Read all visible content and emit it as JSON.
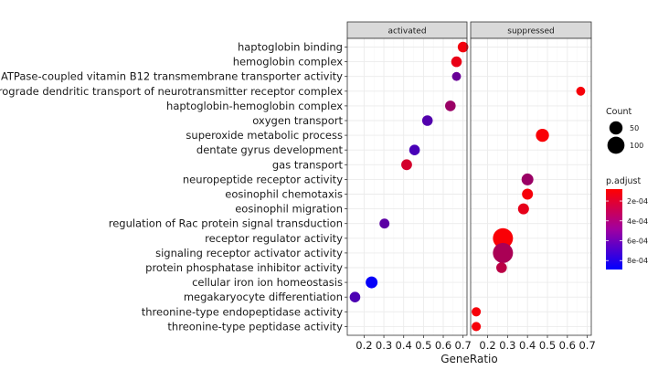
{
  "chart_data": {
    "type": "scatter",
    "panels": [
      "activated",
      "suppressed"
    ],
    "xlabel": "GeneRatio",
    "ylabel": "",
    "x_ticks": [
      "0.2",
      "0.3",
      "0.4",
      "0.5",
      "0.6",
      "0.7"
    ],
    "xlim": [
      0.115,
      0.72
    ],
    "categories": [
      "haptoglobin binding",
      "hemoglobin complex",
      "ATPase-coupled vitamin B12 transmembrane transporter activity",
      "anterograde dendritic transport of neurotransmitter receptor complex",
      "haptoglobin-hemoglobin complex",
      "oxygen transport",
      "superoxide metabolic process",
      "dentate gyrus development",
      "gas transport",
      "neuropeptide receptor activity",
      "eosinophil chemotaxis",
      "eosinophil migration",
      "regulation of Rac protein signal transduction",
      "receptor regulator activity",
      "signaling receptor activator activity",
      "protein phosphatase inhibitor activity",
      "cellular iron ion homeostasis",
      "megakaryocyte differentiation",
      "threonine-type endopeptidase activity",
      "threonine-type peptidase activity"
    ],
    "points": [
      {
        "panel": "activated",
        "category": "haptoglobin binding",
        "x": 0.7,
        "count": 15,
        "p_adjust": 0.00012
      },
      {
        "panel": "activated",
        "category": "hemoglobin complex",
        "x": 0.667,
        "count": 15,
        "p_adjust": 0.00015
      },
      {
        "panel": "activated",
        "category": "ATPase-coupled vitamin B12 transmembrane transporter activity",
        "x": 0.667,
        "count": 8,
        "p_adjust": 0.00056
      },
      {
        "panel": "activated",
        "category": "haptoglobin-hemoglobin complex",
        "x": 0.636,
        "count": 15,
        "p_adjust": 0.0004
      },
      {
        "panel": "activated",
        "category": "oxygen transport",
        "x": 0.52,
        "count": 15,
        "p_adjust": 0.00063
      },
      {
        "panel": "activated",
        "category": "dentate gyrus development",
        "x": 0.455,
        "count": 15,
        "p_adjust": 0.00066
      },
      {
        "panel": "activated",
        "category": "gas transport",
        "x": 0.415,
        "count": 16,
        "p_adjust": 0.00022
      },
      {
        "panel": "activated",
        "category": "regulation of Rac protein signal transduction",
        "x": 0.303,
        "count": 12,
        "p_adjust": 0.0006
      },
      {
        "panel": "activated",
        "category": "cellular iron ion homeostasis",
        "x": 0.238,
        "count": 22,
        "p_adjust": 0.00087
      },
      {
        "panel": "activated",
        "category": "megakaryocyte differentiation",
        "x": 0.154,
        "count": 15,
        "p_adjust": 0.00065
      },
      {
        "panel": "suppressed",
        "category": "anterograde dendritic transport of neurotransmitter receptor complex",
        "x": 0.667,
        "count": 8,
        "p_adjust": 0.00011
      },
      {
        "panel": "suppressed",
        "category": "superoxide metabolic process",
        "x": 0.475,
        "count": 30,
        "p_adjust": 0.0001
      },
      {
        "panel": "suppressed",
        "category": "neuropeptide receptor activity",
        "x": 0.4,
        "count": 22,
        "p_adjust": 0.0004
      },
      {
        "panel": "suppressed",
        "category": "eosinophil chemotaxis",
        "x": 0.4,
        "count": 17,
        "p_adjust": 0.00011
      },
      {
        "panel": "suppressed",
        "category": "eosinophil migration",
        "x": 0.38,
        "count": 17,
        "p_adjust": 0.00016
      },
      {
        "panel": "suppressed",
        "category": "receptor regulator activity",
        "x": 0.277,
        "count": 100,
        "p_adjust": 0.0001
      },
      {
        "panel": "suppressed",
        "category": "signaling receptor activator activity",
        "x": 0.277,
        "count": 100,
        "p_adjust": 0.00035
      },
      {
        "panel": "suppressed",
        "category": "protein phosphatase inhibitor activity",
        "x": 0.27,
        "count": 15,
        "p_adjust": 0.0003
      },
      {
        "panel": "suppressed",
        "category": "threonine-type endopeptidase activity",
        "x": 0.143,
        "count": 9,
        "p_adjust": 0.00011
      },
      {
        "panel": "suppressed",
        "category": "threonine-type peptidase activity",
        "x": 0.143,
        "count": 9,
        "p_adjust": 0.00011
      }
    ],
    "size_legend": {
      "title": "Count",
      "values": [
        50,
        100
      ],
      "labels": [
        "50",
        "100"
      ]
    },
    "color_legend": {
      "title": "p.adjust",
      "ticks": [
        0.0002,
        0.0004,
        0.0006,
        0.0008
      ],
      "tick_labels": [
        "2e-04",
        "4e-04",
        "6e-04",
        "8e-04"
      ],
      "range": [
        8e-05,
        0.00089
      ],
      "low_color": "#ff0000",
      "high_color": "#0000ff"
    },
    "grid": true,
    "legend_position": "right"
  }
}
